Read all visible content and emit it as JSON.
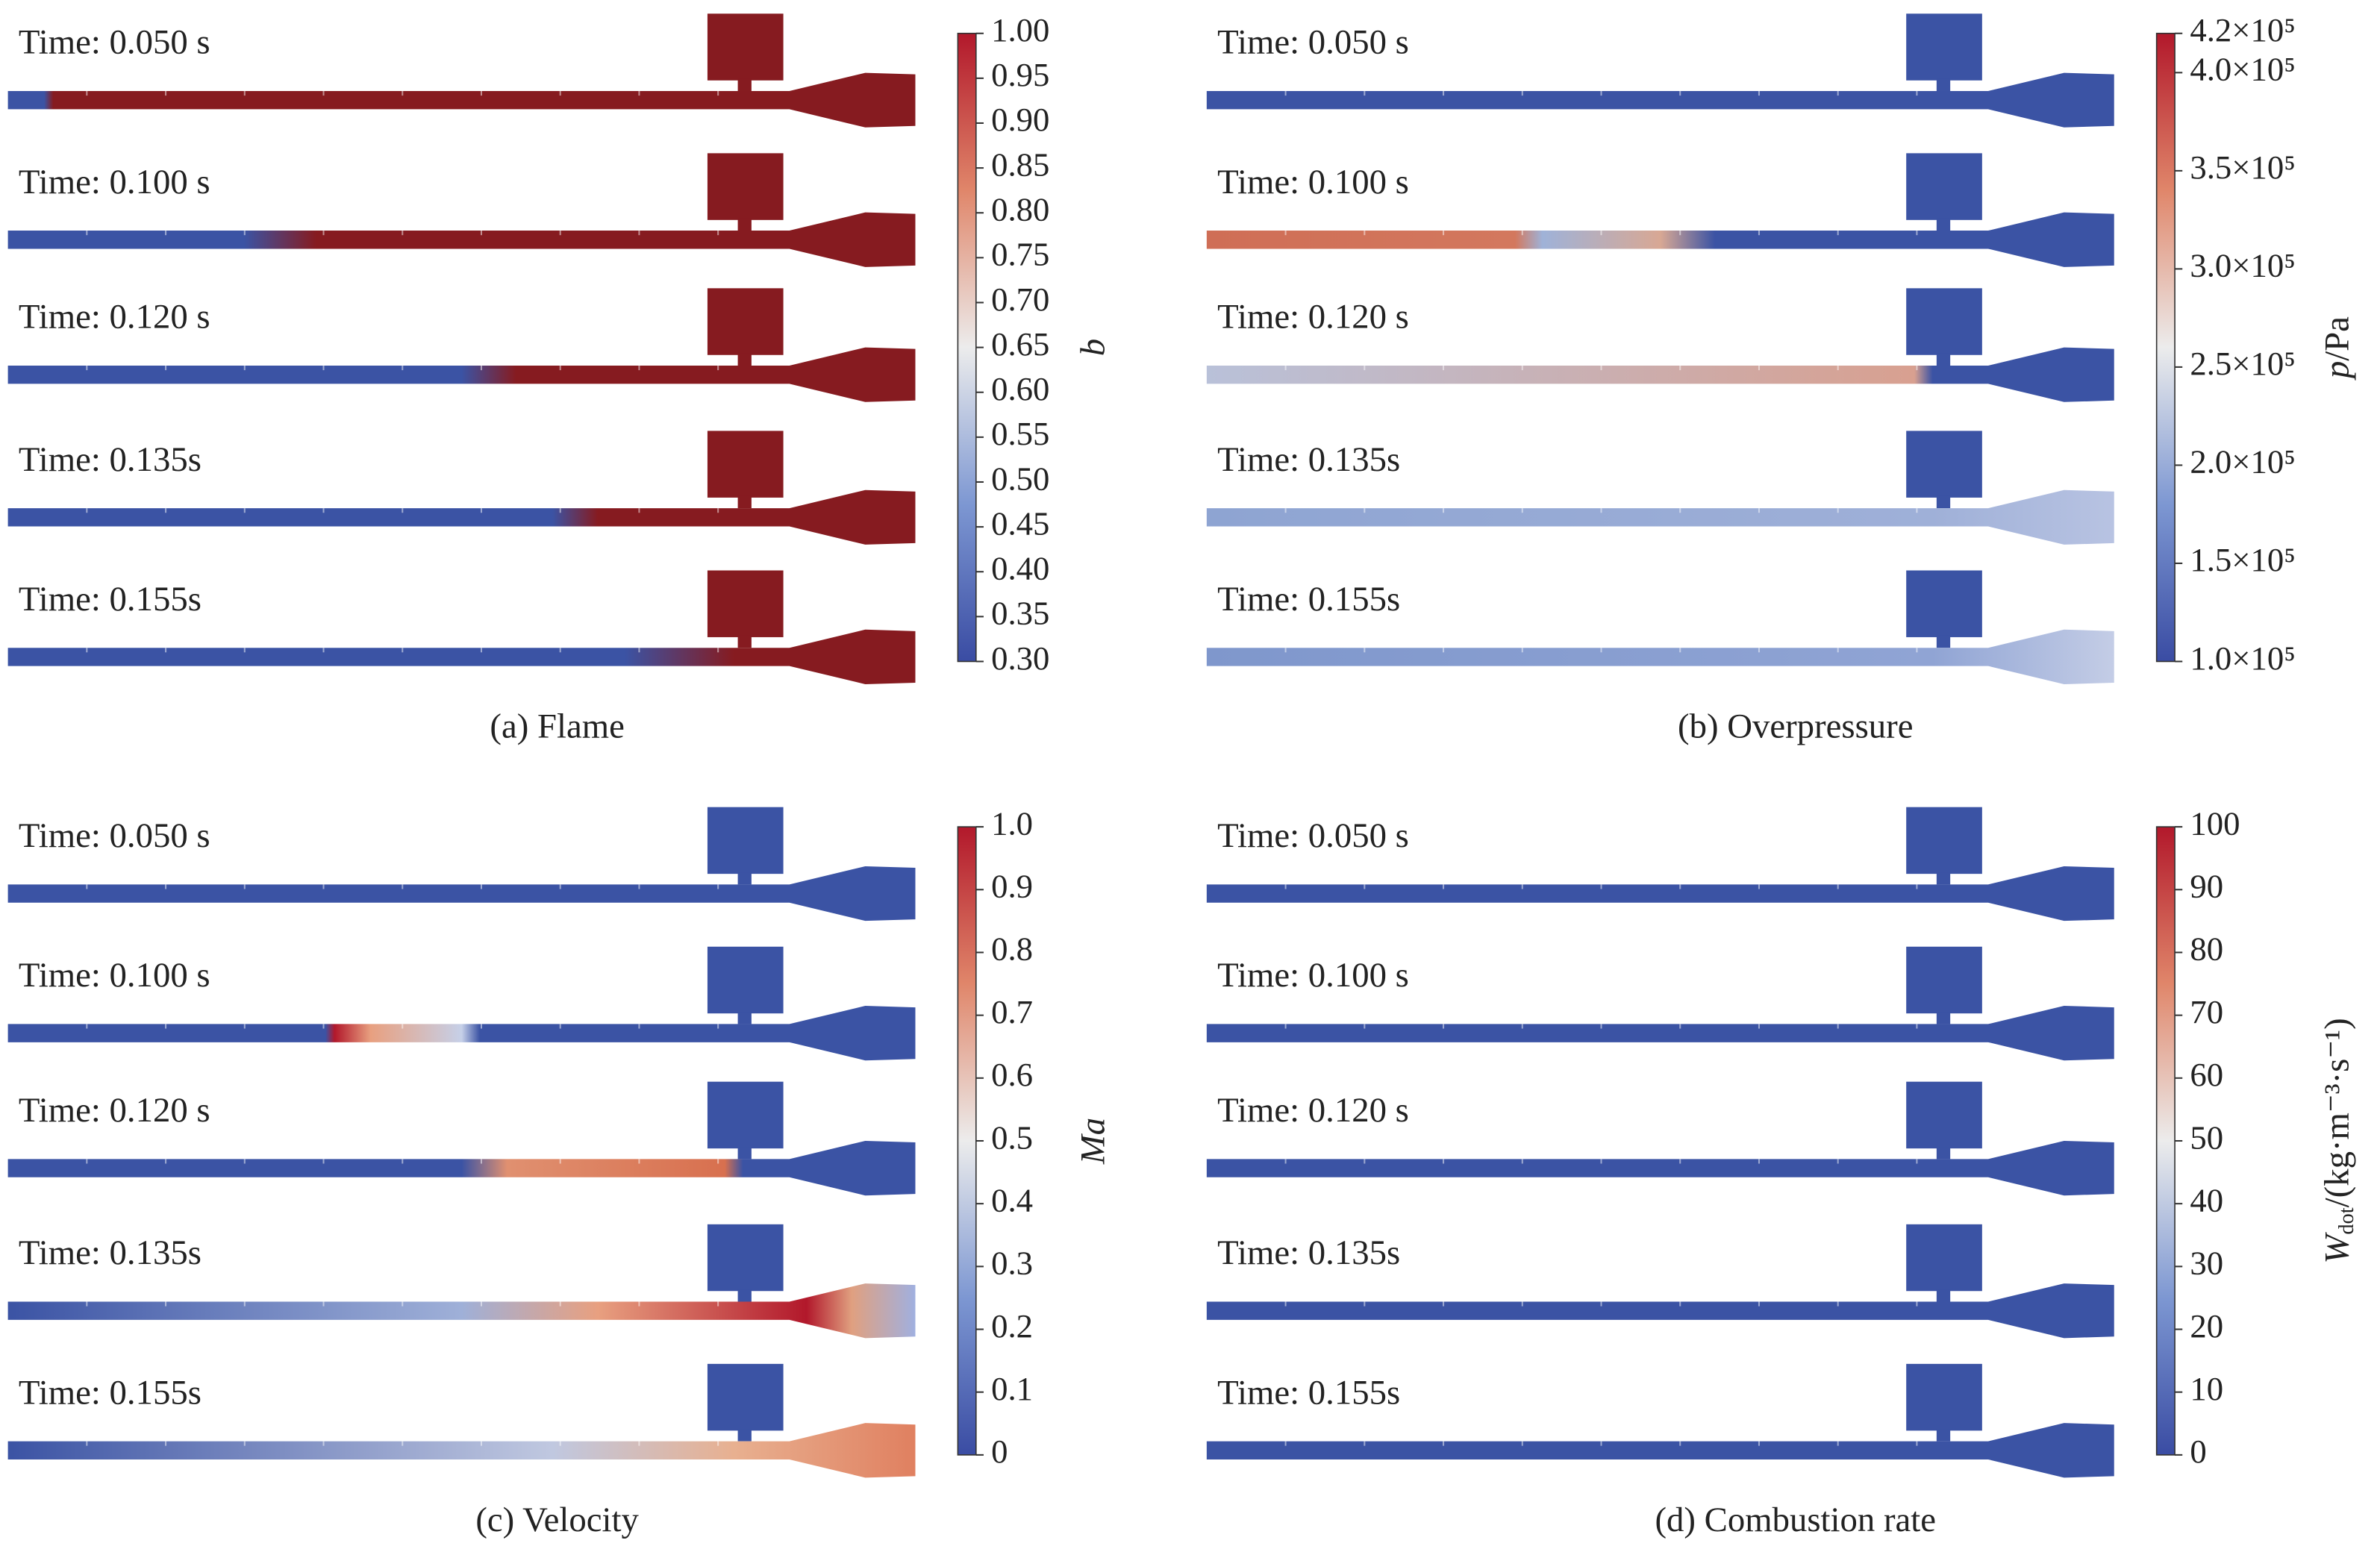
{
  "panels": [
    {
      "caption": "(a) Flame",
      "times": [
        "Time: 0.050 s",
        "Time: 0.100 s",
        "Time: 0.120 s",
        "Time: 0.135s",
        "Time: 0.155s"
      ],
      "colorbar": {
        "label": {
          "symbol": "b"
        },
        "range": [
          0.3,
          1.0
        ],
        "ticks": [
          {
            "value": 0.3,
            "label": "0.30"
          },
          0.35,
          {
            "value": 0.4,
            "label": "0.40"
          },
          0.45,
          {
            "value": 0.5,
            "label": "0.50"
          },
          0.55,
          {
            "value": 0.6,
            "label": "0.60"
          },
          0.65,
          {
            "value": 0.7,
            "label": "0.70"
          },
          0.75,
          {
            "value": 0.8,
            "label": "0.80"
          },
          0.85,
          {
            "value": 0.9,
            "label": "0.90"
          },
          0.95,
          {
            "value": 1.0,
            "label": "1.00"
          }
        ]
      }
    },
    {
      "caption": "(b) Overpressure",
      "times": [
        "Time: 0.050 s",
        "Time: 0.100 s",
        "Time: 0.120 s",
        "Time: 0.135s",
        "Time: 0.155s"
      ],
      "colorbar": {
        "label": {
          "symbol": "p",
          "unit": "/Pa"
        },
        "range": [
          100000,
          420000
        ],
        "ticks": [
          {
            "value": 100000,
            "label": "1.0×10⁵"
          },
          {
            "value": 150000,
            "label": "1.5×10⁵"
          },
          {
            "value": 200000,
            "label": "2.0×10⁵"
          },
          {
            "value": 250000,
            "label": "2.5×10⁵"
          },
          {
            "value": 300000,
            "label": "3.0×10⁵"
          },
          {
            "value": 350000,
            "label": "3.5×10⁵"
          },
          {
            "value": 400000,
            "label": "4.0×10⁵"
          },
          {
            "value": 420000,
            "label": "4.2×10⁵"
          }
        ]
      }
    },
    {
      "caption": "(c) Velocity",
      "times": [
        "Time: 0.050 s",
        "Time: 0.100 s",
        "Time: 0.120 s",
        "Time: 0.135s",
        "Time: 0.155s"
      ],
      "colorbar": {
        "label": {
          "symbol": "Ma"
        },
        "range": [
          0,
          1.0
        ],
        "ticks": [
          0,
          0.1,
          0.2,
          0.3,
          0.4,
          0.5,
          0.6,
          0.7,
          0.8,
          0.9,
          {
            "value": 1.0,
            "label": "1.0"
          }
        ]
      }
    },
    {
      "caption": "(d) Combustion rate",
      "times": [
        "Time: 0.050 s",
        "Time: 0.100 s",
        "Time: 0.120 s",
        "Time: 0.135s",
        "Time: 0.155s"
      ],
      "colorbar": {
        "label": {
          "symbol": "W",
          "subscript": "dot",
          "unit": "/(kg·m⁻³·s⁻¹)"
        },
        "range": [
          0,
          100
        ],
        "ticks": [
          0,
          10,
          20,
          30,
          40,
          50,
          60,
          70,
          80,
          90,
          100
        ]
      }
    }
  ]
}
